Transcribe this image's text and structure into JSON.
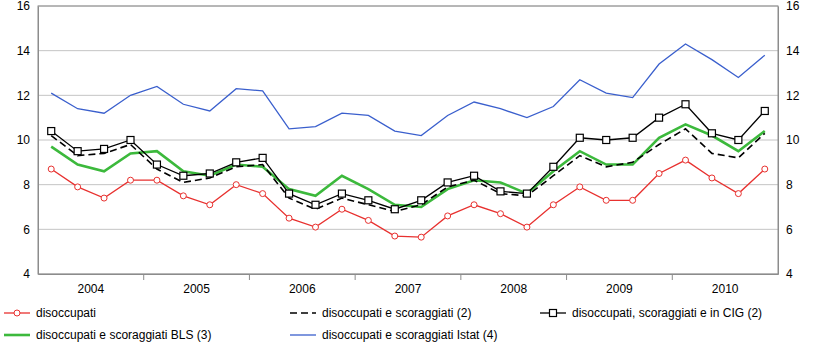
{
  "chart_data": {
    "type": "line",
    "categories": [
      "2004",
      null,
      null,
      null,
      "2005",
      null,
      null,
      null,
      "2006",
      null,
      null,
      null,
      "2007",
      null,
      null,
      null,
      "2008",
      null,
      null,
      null,
      "2009",
      null,
      null,
      null,
      "2010",
      null,
      null,
      null
    ],
    "series": [
      {
        "name": "disoccupati",
        "color": "#e8312f",
        "marker": "circle",
        "line_style": "solid",
        "values": [
          8.7,
          7.9,
          7.4,
          8.2,
          8.2,
          7.5,
          7.1,
          8.0,
          7.6,
          6.5,
          6.1,
          6.9,
          6.4,
          5.7,
          5.65,
          6.6,
          7.1,
          6.7,
          6.1,
          7.1,
          7.9,
          7.3,
          7.3,
          8.5,
          9.1,
          8.3,
          7.6,
          8.7
        ]
      },
      {
        "name": "disoccupati e scoraggiati (2)",
        "color": "#000000",
        "marker": "none",
        "line_style": "dashed",
        "values": [
          10.2,
          9.3,
          9.4,
          9.8,
          8.7,
          8.1,
          8.3,
          8.8,
          8.9,
          7.4,
          6.9,
          7.4,
          7.1,
          6.8,
          7.1,
          7.9,
          8.2,
          7.6,
          7.5,
          8.4,
          9.3,
          8.8,
          9.0,
          9.8,
          10.5,
          9.4,
          9.2,
          10.3
        ]
      },
      {
        "name": "disoccupati, scoraggiati e in CIG (2)",
        "color": "#000000",
        "marker": "square",
        "line_style": "solid",
        "values": [
          10.4,
          9.5,
          9.6,
          10.0,
          8.9,
          8.4,
          8.5,
          9.0,
          9.2,
          7.6,
          7.1,
          7.6,
          7.3,
          6.9,
          7.3,
          8.1,
          8.4,
          7.7,
          7.6,
          8.8,
          10.1,
          10.0,
          10.1,
          11.0,
          11.6,
          10.3,
          10.0,
          11.3
        ]
      },
      {
        "name": "disoccupati e scoraggiati BLS (3)",
        "color": "#3cb93c",
        "marker": "none",
        "line_style": "solid",
        "values": [
          9.7,
          8.9,
          8.6,
          9.4,
          9.5,
          8.6,
          8.4,
          8.9,
          8.8,
          7.8,
          7.5,
          8.4,
          7.8,
          7.1,
          7.0,
          7.8,
          8.2,
          8.1,
          7.6,
          8.6,
          9.5,
          8.9,
          8.9,
          10.1,
          10.7,
          10.2,
          9.5,
          10.4
        ]
      },
      {
        "name": "disoccupati e scoraggiati Istat (4)",
        "color": "#3a5fcd",
        "marker": "none",
        "line_style": "solid",
        "values": [
          12.1,
          11.4,
          11.2,
          12.0,
          12.4,
          11.6,
          11.3,
          12.3,
          12.2,
          10.5,
          10.6,
          11.2,
          11.1,
          10.4,
          10.2,
          11.1,
          11.7,
          11.4,
          11.0,
          11.5,
          12.7,
          12.1,
          11.9,
          13.4,
          14.3,
          13.6,
          12.8,
          13.8
        ]
      }
    ],
    "ylim": [
      4,
      16
    ],
    "yticks": [
      4,
      6,
      8,
      10,
      12,
      14,
      16
    ],
    "y2lim": [
      4,
      16
    ],
    "y2ticks": [
      4,
      6,
      8,
      10,
      12,
      14,
      16
    ],
    "grid": true,
    "legend": "bottom"
  }
}
